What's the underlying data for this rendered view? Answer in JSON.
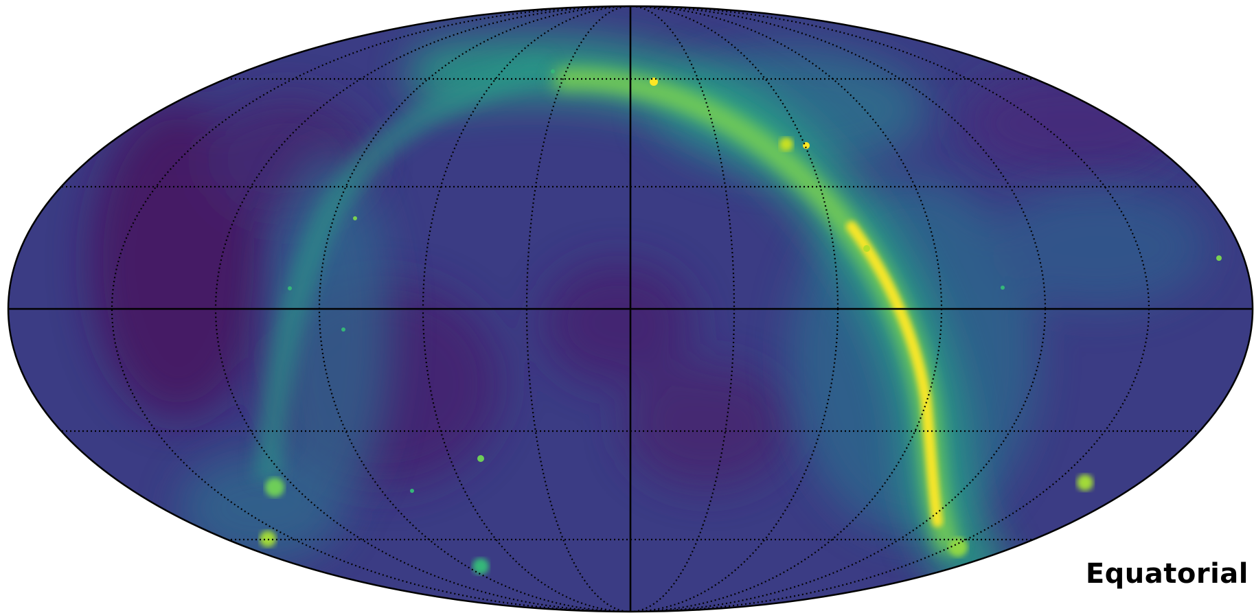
{
  "map": {
    "projection": "mollweide",
    "coordinate_system_label": "Equatorial",
    "colormap": "viridis",
    "graticule": {
      "longitude_step_deg": 15,
      "latitude_lines_deg": [
        -60,
        -30,
        0,
        30,
        60
      ],
      "style": "dotted",
      "prime_meridian_and_equator": "solid"
    },
    "colors": {
      "background_low": "#440154",
      "mid": "#21918c",
      "high": "#fde725",
      "graticule": "#000000"
    }
  }
}
